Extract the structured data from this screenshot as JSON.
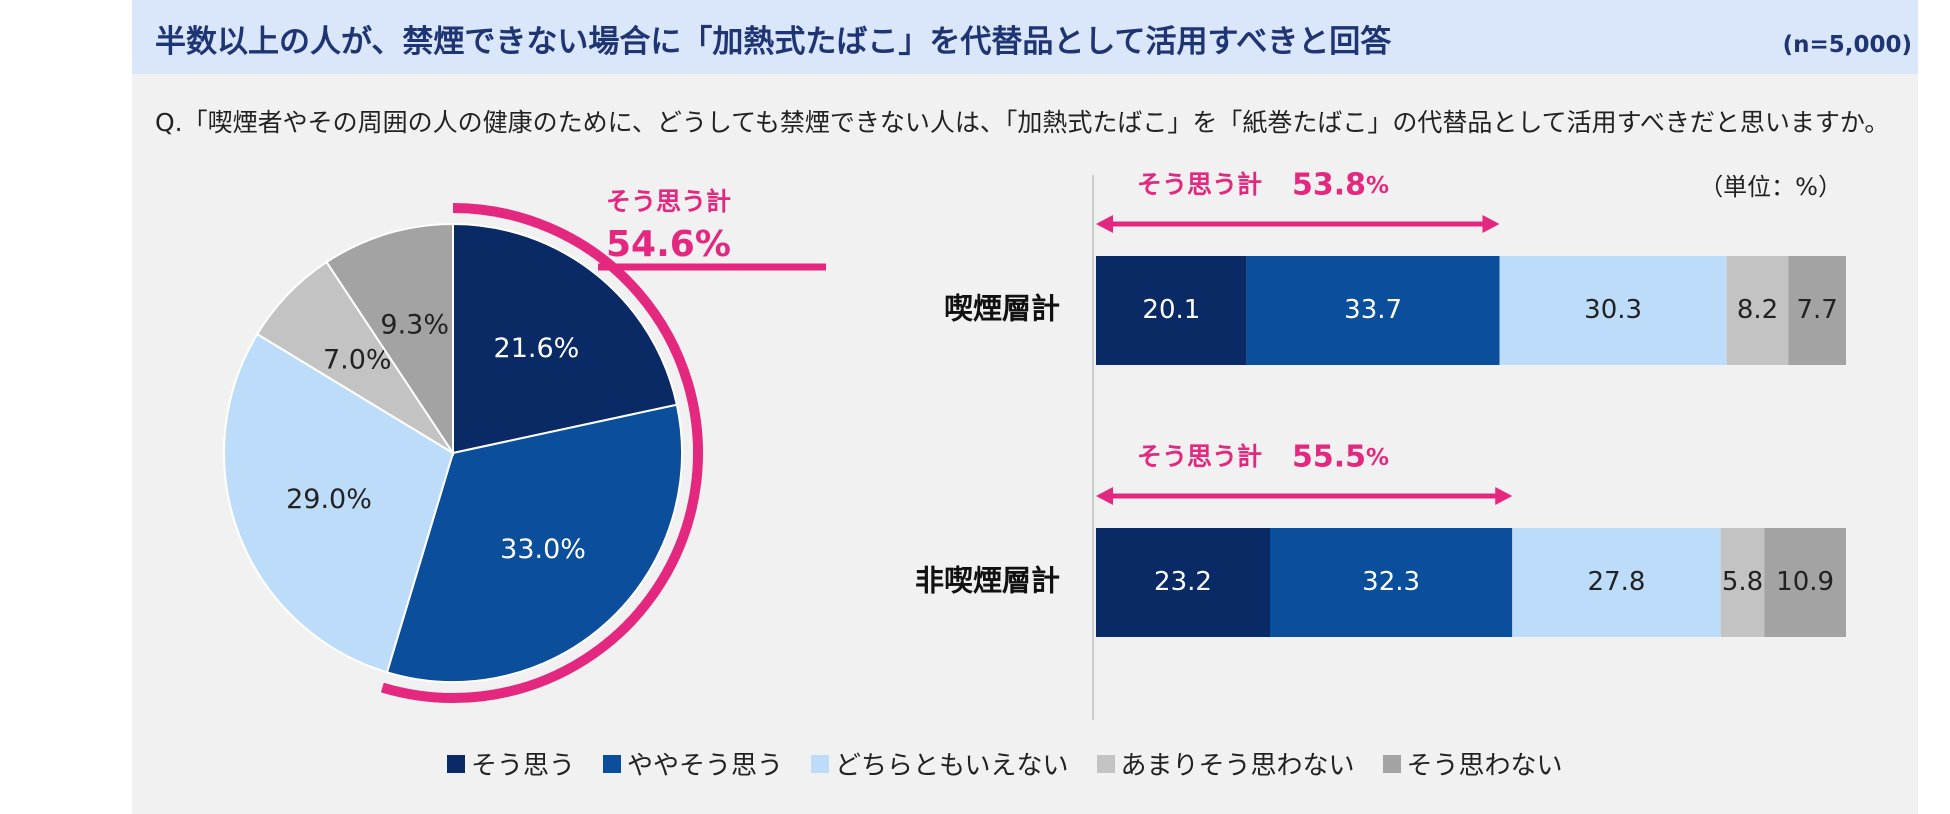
{
  "header": {
    "title": "半数以上の人が、禁煙できない場合に「加熱式たばこ」を代替品として活用すべきと回答",
    "n": "(n=5,000)"
  },
  "question": "Q.「喫煙者やその周囲の人の健康のために、どうしても禁煙できない人は、「加熱式たばこ」を「紙巻たばこ」の代替品として活用すべきだと思いますか。",
  "colors": {
    "strongly_agree": "#0a2a66",
    "somewhat_agree": "#0b4f9c",
    "neutral": "#bddcf9",
    "somewhat_disagree": "#c3c3c3",
    "disagree": "#a3a3a3",
    "accent": "#e4287f",
    "title": "#1f3573"
  },
  "chart_data": [
    {
      "type": "pie",
      "categories": [
        "そう思う",
        "ややそう思う",
        "どちらともいえない",
        "あまりそう思わない",
        "そう思わない"
      ],
      "values": [
        21.6,
        33.0,
        29.0,
        7.0,
        9.3
      ],
      "labels": [
        "21.6%",
        "33.0%",
        "29.0%",
        "7.0%",
        "9.3%"
      ],
      "annotation": {
        "label": "そう思う計",
        "value": "54.6%"
      }
    },
    {
      "type": "bar",
      "orientation": "horizontal-stacked",
      "unit_label": "（単位：%）",
      "categories": [
        "喫煙層計",
        "非喫煙層計"
      ],
      "series": [
        {
          "name": "そう思う",
          "values": [
            20.1,
            23.2
          ]
        },
        {
          "name": "ややそう思う",
          "values": [
            33.7,
            32.3
          ]
        },
        {
          "name": "どちらともいえない",
          "values": [
            30.3,
            27.8
          ]
        },
        {
          "name": "あまりそう思わない",
          "values": [
            8.2,
            5.8
          ]
        },
        {
          "name": "そう思わない",
          "values": [
            7.7,
            10.9
          ]
        }
      ],
      "value_labels": [
        [
          "20.1",
          "33.7",
          "30.3",
          "8.2",
          "7.7"
        ],
        [
          "23.2",
          "32.3",
          "27.8",
          "5.8",
          "10.9"
        ]
      ],
      "annotations": [
        {
          "label": "そう思う計",
          "value": "53.8",
          "unit": "%"
        },
        {
          "label": "そう思う計",
          "value": "55.5",
          "unit": "%"
        }
      ]
    }
  ],
  "legend": [
    "そう思う",
    "ややそう思う",
    "どちらともいえない",
    "あまりそう思わない",
    "そう思わない"
  ]
}
